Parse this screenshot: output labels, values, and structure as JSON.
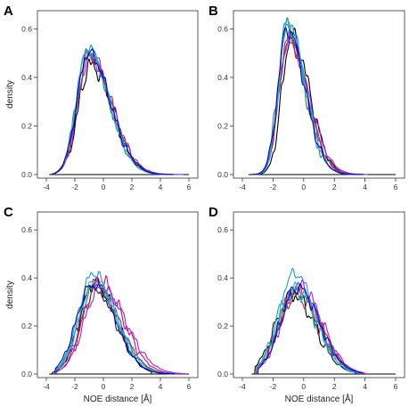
{
  "series_colors": [
    "#000000",
    "#e8007d",
    "#2e8b57",
    "#1e90ff",
    "#8a2be2",
    "#8b3a3a",
    "#17becf",
    "#0000cd"
  ],
  "chart_data": [
    {
      "type": "line",
      "label": "A",
      "xlabel": "",
      "ylabel": "density",
      "xlim": [
        -4,
        6
      ],
      "ylim": [
        0,
        0.66
      ],
      "x_ticks": [
        "-4",
        "-2",
        "0",
        "2",
        "4",
        "6"
      ],
      "y_ticks": [
        "0.0",
        "0.2",
        "0.4",
        "0.6"
      ],
      "grid": false,
      "series": [
        {
          "color": "#000000",
          "peak_x": -0.9,
          "peak_y": 0.45,
          "width": 0.85,
          "skew": 1.8,
          "start": -3.6,
          "end": 4.2
        },
        {
          "color": "#e8007d",
          "peak_x": -1.0,
          "peak_y": 0.49,
          "width": 0.8,
          "skew": 1.9,
          "start": -3.5,
          "end": 5.2
        },
        {
          "color": "#2e8b57",
          "peak_x": -1.1,
          "peak_y": 0.51,
          "width": 0.78,
          "skew": 1.9,
          "start": -3.4,
          "end": 5.0
        },
        {
          "color": "#1e90ff",
          "peak_x": -1.1,
          "peak_y": 0.52,
          "width": 0.78,
          "skew": 1.9,
          "start": -3.4,
          "end": 4.8
        },
        {
          "color": "#8a2be2",
          "peak_x": -1.0,
          "peak_y": 0.48,
          "width": 0.8,
          "skew": 2.0,
          "start": -3.5,
          "end": 5.6
        },
        {
          "color": "#8b3a3a",
          "peak_x": -1.0,
          "peak_y": 0.5,
          "width": 0.8,
          "skew": 1.9,
          "start": -3.4,
          "end": 4.6
        },
        {
          "color": "#17becf",
          "peak_x": -1.1,
          "peak_y": 0.51,
          "width": 0.78,
          "skew": 1.9,
          "start": -3.4,
          "end": 4.6
        },
        {
          "color": "#0000cd",
          "peak_x": -1.05,
          "peak_y": 0.5,
          "width": 0.8,
          "skew": 1.9,
          "start": -3.4,
          "end": 4.9
        }
      ]
    },
    {
      "type": "line",
      "label": "B",
      "xlabel": "",
      "ylabel": "",
      "xlim": [
        -4,
        6
      ],
      "ylim": [
        0,
        0.66
      ],
      "x_ticks": [
        "-4",
        "-2",
        "0",
        "2",
        "4",
        "6"
      ],
      "y_ticks": [
        "0.0",
        "0.2",
        "0.4",
        "0.6"
      ],
      "grid": false,
      "series": [
        {
          "color": "#000000",
          "peak_x": -0.8,
          "peak_y": 0.57,
          "width": 0.62,
          "skew": 1.9,
          "start": -3.4,
          "end": 3.6
        },
        {
          "color": "#e8007d",
          "peak_x": -1.0,
          "peak_y": 0.55,
          "width": 0.62,
          "skew": 2.0,
          "start": -3.3,
          "end": 4.0
        },
        {
          "color": "#2e8b57",
          "peak_x": -1.1,
          "peak_y": 0.6,
          "width": 0.58,
          "skew": 2.0,
          "start": -3.3,
          "end": 3.8
        },
        {
          "color": "#1e90ff",
          "peak_x": -1.05,
          "peak_y": 0.63,
          "width": 0.56,
          "skew": 2.0,
          "start": -3.3,
          "end": 3.8
        },
        {
          "color": "#8a2be2",
          "peak_x": -1.0,
          "peak_y": 0.55,
          "width": 0.63,
          "skew": 2.1,
          "start": -3.3,
          "end": 4.2
        },
        {
          "color": "#8b3a3a",
          "peak_x": -1.0,
          "peak_y": 0.57,
          "width": 0.6,
          "skew": 2.0,
          "start": -3.3,
          "end": 3.8
        },
        {
          "color": "#17becf",
          "peak_x": -1.05,
          "peak_y": 0.62,
          "width": 0.57,
          "skew": 2.0,
          "start": -3.3,
          "end": 3.8
        },
        {
          "color": "#0000cd",
          "peak_x": -1.1,
          "peak_y": 0.6,
          "width": 0.58,
          "skew": 2.0,
          "start": -3.3,
          "end": 3.9
        }
      ]
    },
    {
      "type": "line",
      "label": "C",
      "xlabel": "NOE distance [Å]",
      "ylabel": "density",
      "xlim": [
        -4,
        6
      ],
      "ylim": [
        0,
        0.66
      ],
      "x_ticks": [
        "-4",
        "-2",
        "0",
        "2",
        "4",
        "6"
      ],
      "y_ticks": [
        "0.0",
        "0.2",
        "0.4",
        "0.6"
      ],
      "grid": false,
      "series": [
        {
          "color": "#000000",
          "peak_x": -0.6,
          "peak_y": 0.38,
          "width": 1.05,
          "skew": 1.4,
          "start": -3.6,
          "end": 3.4
        },
        {
          "color": "#e8007d",
          "peak_x": -0.3,
          "peak_y": 0.39,
          "width": 1.1,
          "skew": 1.5,
          "start": -3.4,
          "end": 5.8
        },
        {
          "color": "#2e8b57",
          "peak_x": -0.6,
          "peak_y": 0.36,
          "width": 1.15,
          "skew": 1.45,
          "start": -3.4,
          "end": 5.2
        },
        {
          "color": "#1e90ff",
          "peak_x": -0.7,
          "peak_y": 0.42,
          "width": 1.05,
          "skew": 1.45,
          "start": -3.4,
          "end": 5.0
        },
        {
          "color": "#8a2be2",
          "peak_x": -0.2,
          "peak_y": 0.36,
          "width": 1.15,
          "skew": 1.55,
          "start": -3.3,
          "end": 5.8
        },
        {
          "color": "#8b3a3a",
          "peak_x": -0.5,
          "peak_y": 0.35,
          "width": 1.12,
          "skew": 1.45,
          "start": -3.4,
          "end": 4.6
        },
        {
          "color": "#17becf",
          "peak_x": -0.6,
          "peak_y": 0.39,
          "width": 1.08,
          "skew": 1.45,
          "start": -3.4,
          "end": 4.8
        },
        {
          "color": "#0000cd",
          "peak_x": -0.8,
          "peak_y": 0.37,
          "width": 1.1,
          "skew": 1.45,
          "start": -3.4,
          "end": 5.0
        }
      ]
    },
    {
      "type": "line",
      "label": "D",
      "xlabel": "NOE distance [Å]",
      "ylabel": "",
      "xlim": [
        -4,
        6
      ],
      "ylim": [
        0,
        0.66
      ],
      "x_ticks": [
        "-4",
        "-2",
        "0",
        "2",
        "4",
        "6"
      ],
      "y_ticks": [
        "0.0",
        "0.2",
        "0.4",
        "0.6"
      ],
      "grid": false,
      "series": [
        {
          "color": "#000000",
          "peak_x": -0.7,
          "peak_y": 0.33,
          "width": 1.15,
          "skew": 1.25,
          "start": -3.2,
          "end": 3.4
        },
        {
          "color": "#e8007d",
          "peak_x": -0.4,
          "peak_y": 0.35,
          "width": 1.15,
          "skew": 1.3,
          "start": -3.1,
          "end": 4.0
        },
        {
          "color": "#2e8b57",
          "peak_x": -0.5,
          "peak_y": 0.34,
          "width": 1.15,
          "skew": 1.3,
          "start": -3.1,
          "end": 3.8
        },
        {
          "color": "#1e90ff",
          "peak_x": -0.6,
          "peak_y": 0.42,
          "width": 1.05,
          "skew": 1.3,
          "start": -3.0,
          "end": 3.8
        },
        {
          "color": "#8a2be2",
          "peak_x": -0.3,
          "peak_y": 0.37,
          "width": 1.12,
          "skew": 1.3,
          "start": -3.0,
          "end": 3.9
        },
        {
          "color": "#8b3a3a",
          "peak_x": -0.5,
          "peak_y": 0.33,
          "width": 1.15,
          "skew": 1.3,
          "start": -3.1,
          "end": 3.6
        },
        {
          "color": "#17becf",
          "peak_x": -0.6,
          "peak_y": 0.35,
          "width": 1.12,
          "skew": 1.3,
          "start": -3.0,
          "end": 3.7
        },
        {
          "color": "#0000cd",
          "peak_x": -0.4,
          "peak_y": 0.36,
          "width": 1.1,
          "skew": 1.3,
          "start": -3.0,
          "end": 3.8
        }
      ]
    }
  ]
}
